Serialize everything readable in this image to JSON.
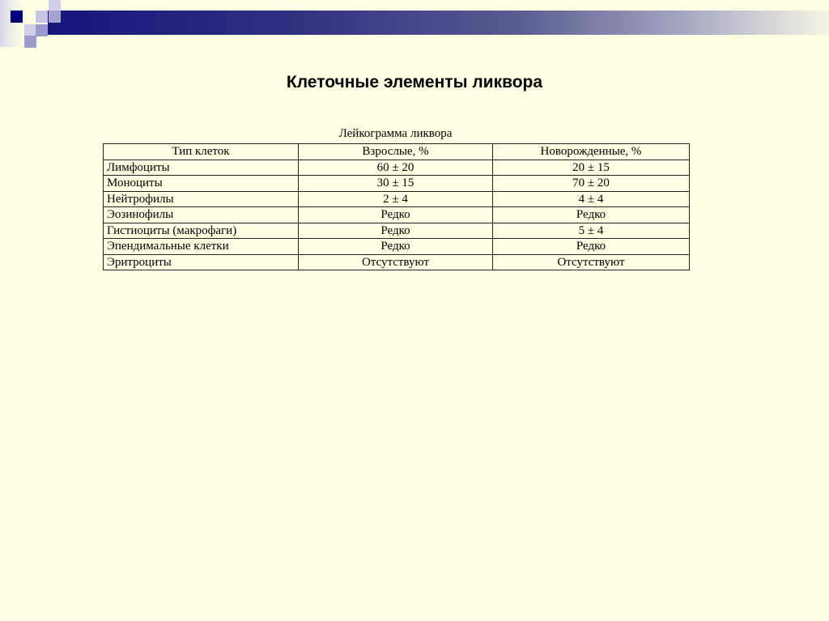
{
  "slide": {
    "title": "Клеточные элементы ликвора",
    "table_caption": "Лейкограмма ликвора",
    "columns": [
      "Тип клеток",
      "Взрослые, %",
      "Новорожденные, %"
    ],
    "rows": [
      [
        "Лимфоциты",
        "60 ± 20",
        "20 ± 15"
      ],
      [
        "Моноциты",
        "30 ± 15",
        "70 ± 20"
      ],
      [
        "Нейтрофилы",
        "2 ± 4",
        "4 ± 4"
      ],
      [
        "Эозинофилы",
        "Редко",
        "Редко"
      ],
      [
        "Гистиоциты (макрофаги)",
        "Редко",
        "5 ± 4"
      ],
      [
        "Эпендимальные клетки",
        "Редко",
        "Редко"
      ],
      [
        "Эритроциты",
        "Отсутствуют",
        "Отсутствуют"
      ]
    ]
  },
  "colors": {
    "background": "#ffffe3",
    "accent": "#16167a"
  }
}
